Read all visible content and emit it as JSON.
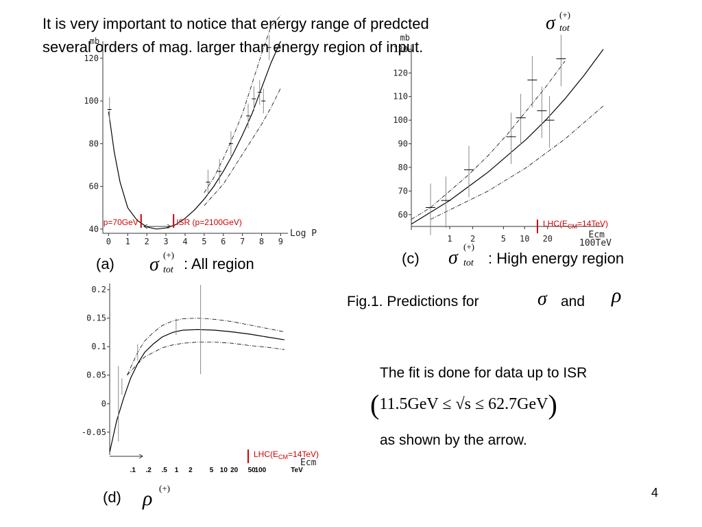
{
  "header": {
    "line1": "It is very important to notice that energy range of predcted",
    "line2": "several orders of mag. larger than energy region of input."
  },
  "symbols": {
    "sigma": "σ",
    "rho": "ρ",
    "plus": "(+)",
    "tot": "tot"
  },
  "fig_caption": {
    "prefix": "Fig.1.  Predictions for",
    "and": "and"
  },
  "fit_note": {
    "line1": "The fit is done for data up to ISR",
    "inequality": "11.5GeV ≤ √s ≤ 62.7GeV",
    "line3": "as shown by the arrow."
  },
  "page_number": "4",
  "chart_data": [
    {
      "id": "a",
      "type": "line",
      "panel_label": "(a)",
      "caption_suffix": ": All region",
      "xlabel": "Log P",
      "ylabel": "mb",
      "xlim": [
        -0.3,
        9.2
      ],
      "ylim": [
        38,
        128
      ],
      "xticks": [
        0,
        1,
        2,
        3,
        4,
        5,
        6,
        7,
        8,
        9
      ],
      "yticks": [
        40,
        60,
        80,
        100,
        120
      ],
      "series": [
        {
          "style": "solid",
          "x": [
            0,
            0.3,
            0.6,
            1,
            1.5,
            2,
            2.5,
            3,
            3.5,
            4,
            4.5,
            5,
            5.5,
            6,
            6.5,
            7,
            7.5,
            8,
            8.5,
            9
          ],
          "y": [
            95,
            76,
            62,
            50,
            44,
            41,
            40,
            40.5,
            42,
            45,
            49,
            54,
            60,
            67,
            75,
            84,
            94,
            106,
            118,
            128
          ]
        },
        {
          "style": "dashdot",
          "x": [
            5,
            5.5,
            6,
            6.5,
            7,
            7.5,
            8,
            8.5,
            9
          ],
          "y": [
            57,
            64,
            73,
            83,
            94,
            108,
            122,
            135,
            140
          ]
        },
        {
          "style": "dashdot",
          "x": [
            5,
            5.5,
            6,
            6.5,
            7,
            7.5,
            8,
            8.5,
            9
          ],
          "y": [
            51,
            56,
            61,
            68,
            75,
            82,
            89,
            97,
            106
          ]
        }
      ],
      "data_points": [
        {
          "x": 0.05,
          "y": 96
        },
        {
          "x": 5.2,
          "y": 62
        },
        {
          "x": 5.8,
          "y": 67
        },
        {
          "x": 6.4,
          "y": 80
        },
        {
          "x": 7.3,
          "y": 93
        },
        {
          "x": 7.6,
          "y": 101
        },
        {
          "x": 7.9,
          "y": 104
        },
        {
          "x": 8.1,
          "y": 100
        },
        {
          "x": 8.4,
          "y": 125
        }
      ],
      "annotations": {
        "left": "p=70GeV",
        "right": "ISR (p=2100GeV)",
        "left_x": 1.7,
        "right_x": 3.4
      }
    },
    {
      "id": "c",
      "type": "line",
      "panel_label": "(c)",
      "caption_suffix": ":  High energy region",
      "xlabel": "Ecm",
      "xunit": "100TeV",
      "ylabel": "mb",
      "ylim": [
        55,
        132
      ],
      "yticks": [
        60,
        70,
        80,
        90,
        100,
        110,
        120,
        130
      ],
      "xtick_labels": [
        "1",
        "2",
        "5",
        "10",
        "20"
      ],
      "series": [
        {
          "style": "solid",
          "t": [
            0,
            0.1,
            0.2,
            0.3,
            0.4,
            0.5,
            0.6,
            0.7,
            0.8,
            0.9,
            1.0
          ],
          "y": [
            56,
            61,
            66,
            72,
            78,
            85,
            92,
            100,
            109,
            119,
            130
          ]
        },
        {
          "style": "dashdot",
          "t": [
            0,
            0.1,
            0.2,
            0.3,
            0.4,
            0.5,
            0.6,
            0.7,
            0.8,
            0.9,
            1.0
          ],
          "y": [
            58,
            63,
            70,
            77,
            85,
            94,
            104,
            114,
            125,
            134,
            140
          ]
        },
        {
          "style": "dashdot",
          "t": [
            0.1,
            0.2,
            0.3,
            0.4,
            0.5,
            0.6,
            0.7,
            0.8,
            0.9,
            1.0
          ],
          "y": [
            58,
            62,
            66,
            70,
            75,
            80,
            86,
            92,
            99,
            106
          ]
        }
      ],
      "data_points": [
        {
          "t": 0.1,
          "y": 63
        },
        {
          "t": 0.18,
          "y": 66
        },
        {
          "t": 0.3,
          "y": 79
        },
        {
          "t": 0.52,
          "y": 93
        },
        {
          "t": 0.57,
          "y": 101
        },
        {
          "t": 0.63,
          "y": 117
        },
        {
          "t": 0.68,
          "y": 104
        },
        {
          "t": 0.72,
          "y": 100
        },
        {
          "t": 0.78,
          "y": 126
        }
      ],
      "annotation": {
        "text": "LHC(E",
        "sub": "CM",
        "text2": "=14TeV)"
      }
    },
    {
      "id": "d",
      "type": "line",
      "panel_label": "(d)",
      "xlabel": "Ecm",
      "xunit": "TeV",
      "ylim": [
        -0.09,
        0.205
      ],
      "yticks": [
        0.2,
        0.15,
        0.1,
        0.05,
        0,
        -0.05
      ],
      "ytick_labels": [
        "0.2",
        "0.15",
        "0.1",
        "0.05",
        "0",
        "-0.05"
      ],
      "xtick_labels": [
        ".1",
        ".2",
        ".5",
        "1",
        "2",
        "5",
        "10",
        "20",
        "50",
        "100"
      ],
      "series": [
        {
          "style": "solid",
          "t": [
            0,
            0.04,
            0.08,
            0.12,
            0.16,
            0.2,
            0.25,
            0.3,
            0.36,
            0.42,
            0.5,
            0.6,
            0.7,
            0.8,
            0.9,
            1.0
          ],
          "y": [
            -0.085,
            -0.03,
            0.01,
            0.045,
            0.07,
            0.09,
            0.105,
            0.117,
            0.125,
            0.129,
            0.13,
            0.129,
            0.126,
            0.122,
            0.117,
            0.112
          ]
        },
        {
          "style": "dashdot",
          "t": [
            0.1,
            0.16,
            0.2,
            0.25,
            0.3,
            0.36,
            0.42,
            0.5,
            0.6,
            0.7,
            0.8,
            0.9,
            1.0
          ],
          "y": [
            0.05,
            0.09,
            0.11,
            0.125,
            0.137,
            0.145,
            0.149,
            0.15,
            0.148,
            0.144,
            0.138,
            0.132,
            0.126
          ]
        },
        {
          "style": "dashdot",
          "t": [
            0.1,
            0.16,
            0.2,
            0.25,
            0.3,
            0.36,
            0.42,
            0.5,
            0.6,
            0.7,
            0.8,
            0.9,
            1.0
          ],
          "y": [
            0.05,
            0.07,
            0.082,
            0.09,
            0.098,
            0.103,
            0.106,
            0.108,
            0.108,
            0.106,
            0.102,
            0.099,
            0.095
          ]
        }
      ],
      "data_points": [
        {
          "t": 0.05,
          "y": 0.0
        },
        {
          "t": 0.07,
          "y": 0.03
        },
        {
          "t": 0.16,
          "y": 0.09
        },
        {
          "t": 0.38,
          "y": 0.135
        },
        {
          "t": 0.52,
          "y": 0.13
        }
      ],
      "annotation": {
        "text": "LHC(E",
        "sub": "CM",
        "text2": "=14TeV)"
      }
    }
  ]
}
